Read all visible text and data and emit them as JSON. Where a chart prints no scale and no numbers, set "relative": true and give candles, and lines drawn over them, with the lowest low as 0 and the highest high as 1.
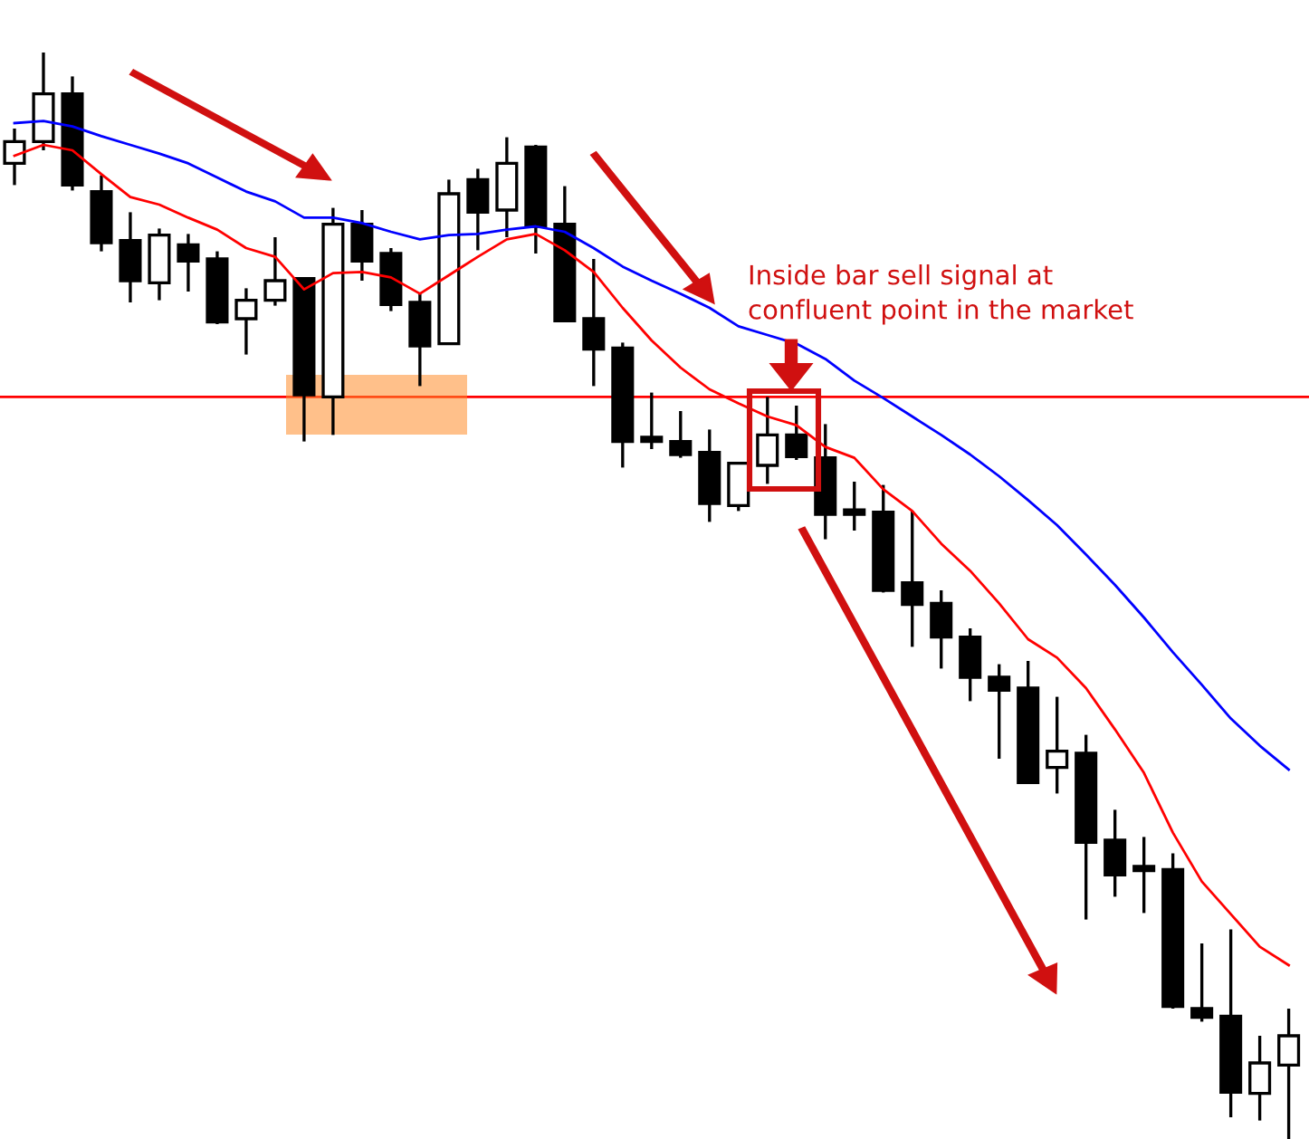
{
  "chart_data": {
    "type": "candlestick",
    "relative": true,
    "categories": [
      null,
      null,
      null,
      null,
      null,
      null,
      null,
      null,
      null,
      null,
      null,
      null,
      null,
      null,
      null,
      null,
      null,
      null,
      null,
      null,
      null,
      null,
      null,
      null,
      null,
      null,
      null,
      null,
      null,
      null,
      null,
      null,
      null,
      null,
      null,
      null,
      null,
      null,
      null,
      null,
      null,
      null,
      null,
      null,
      null
    ],
    "ohlc": [
      [
        0.898,
        0.93,
        0.878,
        0.918
      ],
      [
        0.918,
        1.0,
        0.91,
        0.962
      ],
      [
        0.962,
        0.978,
        0.873,
        0.878
      ],
      [
        0.872,
        0.887,
        0.817,
        0.825
      ],
      [
        0.827,
        0.853,
        0.77,
        0.79
      ],
      [
        0.788,
        0.838,
        0.772,
        0.832
      ],
      [
        0.823,
        0.833,
        0.78,
        0.808
      ],
      [
        0.81,
        0.817,
        0.75,
        0.752
      ],
      [
        0.755,
        0.783,
        0.722,
        0.772
      ],
      [
        0.772,
        0.83,
        0.767,
        0.79
      ],
      [
        0.792,
        0.793,
        0.642,
        0.685
      ],
      [
        0.683,
        0.857,
        0.648,
        0.842
      ],
      [
        0.842,
        0.855,
        0.79,
        0.808
      ],
      [
        0.815,
        0.82,
        0.762,
        0.768
      ],
      [
        0.77,
        0.778,
        0.693,
        0.73
      ],
      [
        0.732,
        0.883,
        0.732,
        0.87
      ],
      [
        0.883,
        0.893,
        0.818,
        0.853
      ],
      [
        0.855,
        0.922,
        0.83,
        0.898
      ],
      [
        0.913,
        0.915,
        0.815,
        0.84
      ],
      [
        0.842,
        0.877,
        0.752,
        0.753
      ],
      [
        0.755,
        0.81,
        0.693,
        0.727
      ],
      [
        0.728,
        0.733,
        0.618,
        0.642
      ],
      [
        0.643,
        0.687,
        0.635,
        0.642
      ],
      [
        0.642,
        0.67,
        0.627,
        0.63
      ],
      [
        0.632,
        0.653,
        0.568,
        0.585
      ],
      [
        0.583,
        0.622,
        0.578,
        0.622
      ],
      [
        0.62,
        0.683,
        0.603,
        0.648
      ],
      [
        0.648,
        0.675,
        0.625,
        0.628
      ],
      [
        0.627,
        0.658,
        0.552,
        0.575
      ],
      [
        0.577,
        0.605,
        0.56,
        0.575
      ],
      [
        0.577,
        0.602,
        0.503,
        0.505
      ],
      [
        0.512,
        0.578,
        0.453,
        0.492
      ],
      [
        0.493,
        0.505,
        0.433,
        0.462
      ],
      [
        0.462,
        0.47,
        0.403,
        0.425
      ],
      [
        0.425,
        0.437,
        0.35,
        0.413
      ],
      [
        0.415,
        0.44,
        0.327,
        0.328
      ],
      [
        0.342,
        0.407,
        0.318,
        0.357
      ],
      [
        0.355,
        0.372,
        0.202,
        0.273
      ],
      [
        0.275,
        0.303,
        0.223,
        0.243
      ],
      [
        0.248,
        0.278,
        0.208,
        0.247
      ],
      [
        0.248,
        0.263,
        0.12,
        0.122
      ],
      [
        0.12,
        0.18,
        0.108,
        0.112
      ],
      [
        0.113,
        0.193,
        0.02,
        0.043
      ],
      [
        0.042,
        0.095,
        0.017,
        0.07
      ],
      [
        0.068,
        0.12,
        0.0,
        0.095
      ]
    ],
    "series": [
      {
        "type": "line",
        "color": "#ff0000",
        "values": [
          0.905,
          0.915,
          0.91,
          0.888,
          0.867,
          0.86,
          0.848,
          0.837,
          0.82,
          0.812,
          0.782,
          0.797,
          0.798,
          0.793,
          0.778,
          0.795,
          0.812,
          0.828,
          0.833,
          0.818,
          0.798,
          0.765,
          0.735,
          0.71,
          0.69,
          0.677,
          0.665,
          0.657,
          0.637,
          0.627,
          0.598,
          0.578,
          0.548,
          0.523,
          0.493,
          0.46,
          0.443,
          0.415,
          0.377,
          0.337,
          0.282,
          0.237,
          0.207,
          0.177,
          0.16
        ]
      },
      {
        "type": "line",
        "color": "#0000ff",
        "values": [
          0.935,
          0.937,
          0.932,
          0.923,
          0.915,
          0.907,
          0.898,
          0.885,
          0.872,
          0.863,
          0.848,
          0.848,
          0.843,
          0.835,
          0.828,
          0.832,
          0.833,
          0.837,
          0.84,
          0.835,
          0.82,
          0.803,
          0.79,
          0.778,
          0.765,
          0.748,
          0.74,
          0.732,
          0.718,
          0.698,
          0.682,
          0.665,
          0.648,
          0.63,
          0.61,
          0.588,
          0.565,
          0.538,
          0.51,
          0.48,
          0.448,
          0.418,
          0.387,
          0.362,
          0.34
        ]
      }
    ],
    "ref_lines": [
      {
        "axis": "y",
        "value": 0.683,
        "color": "#ff0000"
      }
    ],
    "annotations": [
      "Inside bar sell signal at\nconfluent point in the market"
    ]
  }
}
